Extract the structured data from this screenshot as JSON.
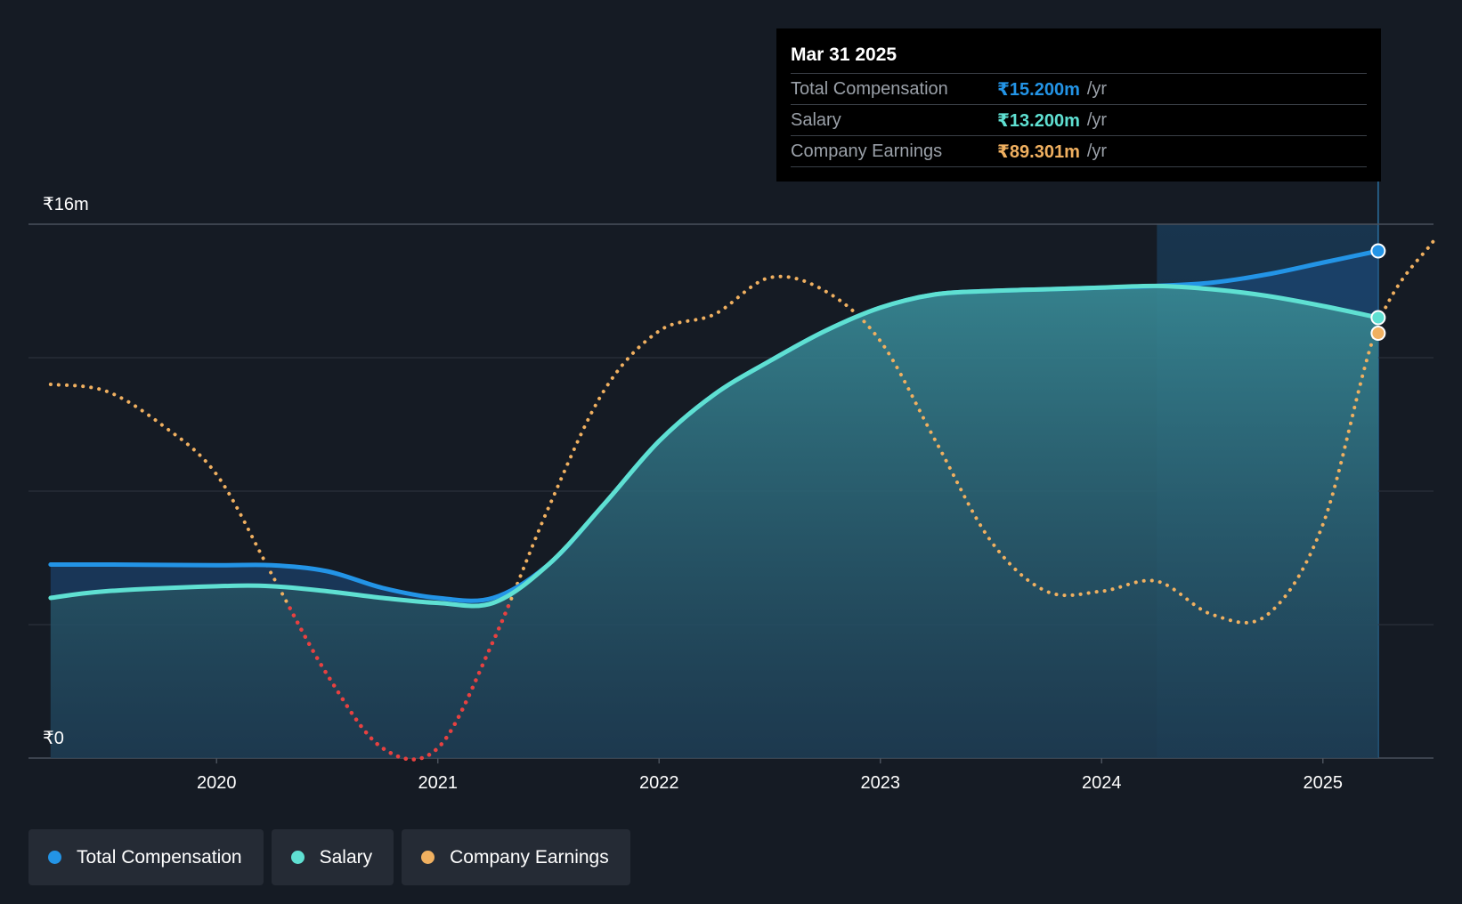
{
  "tooltip": {
    "date": "Mar 31 2025",
    "rows": [
      {
        "label": "Total Compensation",
        "value": "₹15.200m",
        "unit": "/yr",
        "color": "#2394e6"
      },
      {
        "label": "Salary",
        "value": "₹13.200m",
        "unit": "/yr",
        "color": "#5fe0d2"
      },
      {
        "label": "Company Earnings",
        "value": "₹89.301m",
        "unit": "/yr",
        "color": "#f0b060"
      }
    ]
  },
  "legend": [
    {
      "label": "Total Compensation",
      "color": "#2394e6"
    },
    {
      "label": "Salary",
      "color": "#5fe0d2"
    },
    {
      "label": "Company Earnings",
      "color": "#f0b060"
    }
  ],
  "chart_data": {
    "type": "line",
    "title": "",
    "xlabel": "",
    "ylabel": "",
    "ylim": [
      0,
      16
    ],
    "xlim": [
      2019.15,
      2025.5
    ],
    "y_tick_labels": [
      {
        "value": 16,
        "label": "₹16m"
      },
      {
        "value": 0,
        "label": "₹0"
      }
    ],
    "x_tick_labels": [
      "2020",
      "2021",
      "2022",
      "2023",
      "2024",
      "2025"
    ],
    "x_tick_values": [
      2020,
      2021,
      2022,
      2023,
      2024,
      2025
    ],
    "highlight_range": [
      2024.25,
      2025.25
    ],
    "series": [
      {
        "name": "Total Compensation",
        "color": "#2394e6",
        "x": [
          2019.25,
          2019.5,
          2020.0,
          2020.25,
          2020.5,
          2020.75,
          2021.0,
          2021.25,
          2021.5,
          2021.75,
          2022.0,
          2022.25,
          2022.5,
          2022.75,
          2023.0,
          2023.25,
          2023.5,
          2023.75,
          2024.0,
          2024.25,
          2024.5,
          2024.75,
          2025.0,
          2025.25
        ],
        "values": [
          5.8,
          5.8,
          5.78,
          5.78,
          5.6,
          5.1,
          4.8,
          4.8,
          5.8,
          7.6,
          9.5,
          10.9,
          11.9,
          12.8,
          13.5,
          13.9,
          14.0,
          14.05,
          14.1,
          14.15,
          14.25,
          14.5,
          14.85,
          15.2
        ]
      },
      {
        "name": "Salary",
        "color": "#5fe0d2",
        "x": [
          2019.25,
          2019.5,
          2020.0,
          2020.25,
          2020.5,
          2020.75,
          2021.0,
          2021.25,
          2021.5,
          2021.75,
          2022.0,
          2022.25,
          2022.5,
          2022.75,
          2023.0,
          2023.25,
          2023.5,
          2023.75,
          2024.0,
          2024.25,
          2024.5,
          2024.75,
          2025.0,
          2025.25
        ],
        "values": [
          4.8,
          5.0,
          5.15,
          5.15,
          5.0,
          4.8,
          4.65,
          4.65,
          5.8,
          7.6,
          9.5,
          10.9,
          11.9,
          12.8,
          13.5,
          13.9,
          14.0,
          14.05,
          14.1,
          14.15,
          14.05,
          13.85,
          13.55,
          13.2
        ]
      },
      {
        "name": "Company Earnings",
        "color": "#f0b060",
        "negative_color": "#e84040",
        "x": [
          2019.25,
          2019.5,
          2019.75,
          2020.0,
          2020.25,
          2020.5,
          2020.75,
          2021.0,
          2021.25,
          2021.5,
          2021.75,
          2022.0,
          2022.25,
          2022.5,
          2022.75,
          2023.0,
          2023.25,
          2023.5,
          2023.75,
          2024.0,
          2024.25,
          2024.5,
          2024.75,
          2025.0,
          2025.25,
          2025.5
        ],
        "values": [
          11.2,
          11.0,
          10.0,
          8.5,
          5.5,
          2.5,
          0.3,
          0.3,
          3.5,
          7.5,
          11.0,
          12.8,
          13.3,
          14.4,
          14.0,
          12.5,
          9.5,
          6.5,
          5.0,
          5.0,
          5.3,
          4.3,
          4.3,
          7.0,
          13.0,
          15.5
        ]
      }
    ]
  }
}
